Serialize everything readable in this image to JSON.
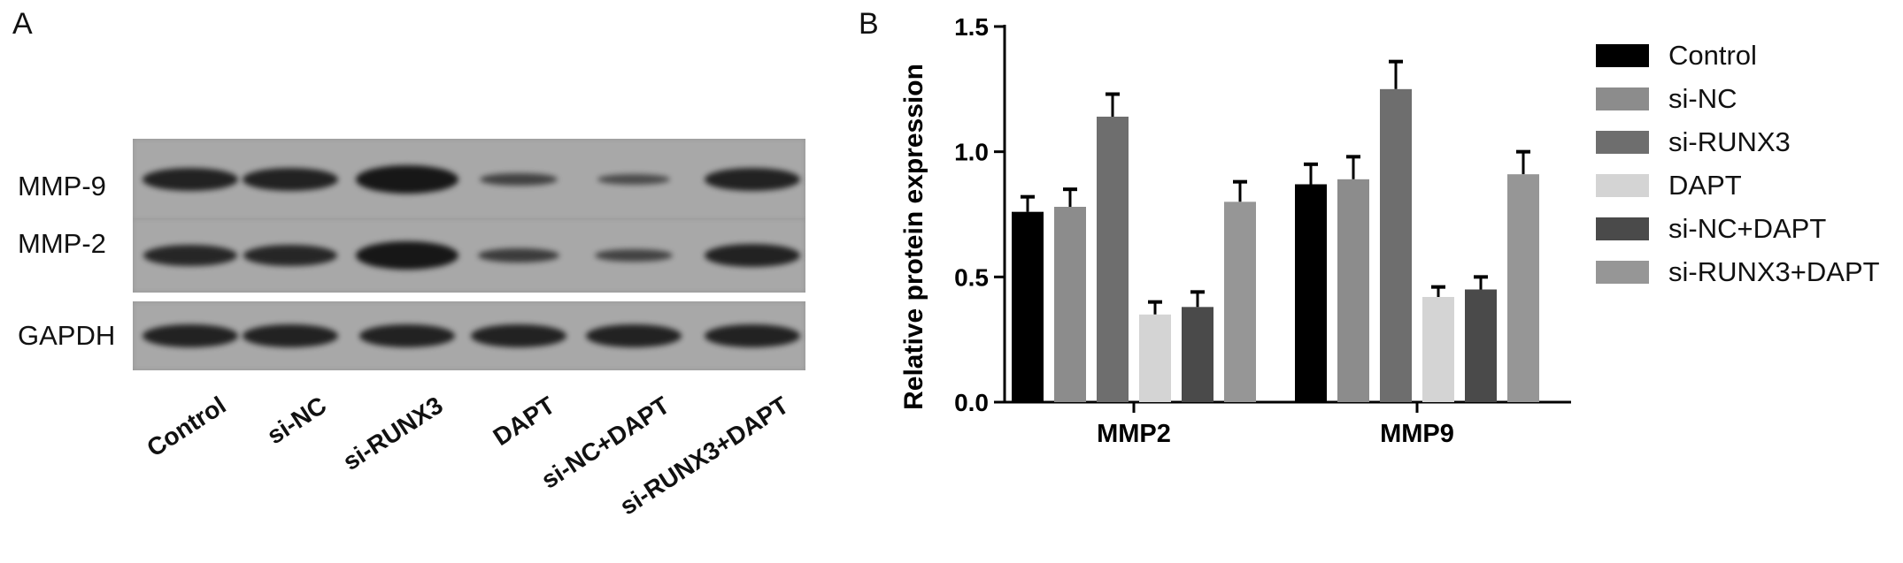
{
  "panel_labels": {
    "a": "A",
    "b": "B"
  },
  "blot": {
    "row_labels": [
      "MMP-9",
      "MMP-2",
      "GAPDH"
    ],
    "lanes": [
      "Control",
      "si-NC",
      "si-RUNX3",
      "DAPT",
      "si-NC+DAPT",
      "si-RUNX3+DAPT"
    ],
    "band_intensity": {
      "MMP-9": [
        0.85,
        0.85,
        1.0,
        0.45,
        0.35,
        0.85
      ],
      "MMP-2": [
        0.8,
        0.8,
        1.0,
        0.55,
        0.45,
        0.85
      ],
      "GAPDH": [
        0.85,
        0.85,
        0.85,
        0.85,
        0.85,
        0.85
      ]
    },
    "background_color": "#a8a8a8",
    "band_color": "#171717"
  },
  "chart_data": {
    "type": "bar",
    "categories": [
      "MMP2",
      "MMP9"
    ],
    "ylabel": "Relative protein expression",
    "ylim": [
      0,
      1.5
    ],
    "yticks": [
      "0.0",
      "0.5",
      "1.0",
      "1.5"
    ],
    "legend_position": "right",
    "grid": false,
    "series": [
      {
        "name": "Control",
        "color": "#000000",
        "values": [
          0.76,
          0.87
        ],
        "errors": [
          0.06,
          0.08
        ]
      },
      {
        "name": "si-NC",
        "color": "#8c8c8c",
        "values": [
          0.78,
          0.89
        ],
        "errors": [
          0.07,
          0.09
        ]
      },
      {
        "name": "si-RUNX3",
        "color": "#6e6e6e",
        "values": [
          1.14,
          1.25
        ],
        "errors": [
          0.09,
          0.11
        ]
      },
      {
        "name": "DAPT",
        "color": "#d4d4d4",
        "values": [
          0.35,
          0.42
        ],
        "errors": [
          0.05,
          0.04
        ]
      },
      {
        "name": "si-NC+DAPT",
        "color": "#4a4a4a",
        "values": [
          0.38,
          0.45
        ],
        "errors": [
          0.06,
          0.05
        ]
      },
      {
        "name": "si-RUNX3+DAPT",
        "color": "#969696",
        "values": [
          0.8,
          0.91
        ],
        "errors": [
          0.08,
          0.09
        ]
      }
    ]
  }
}
